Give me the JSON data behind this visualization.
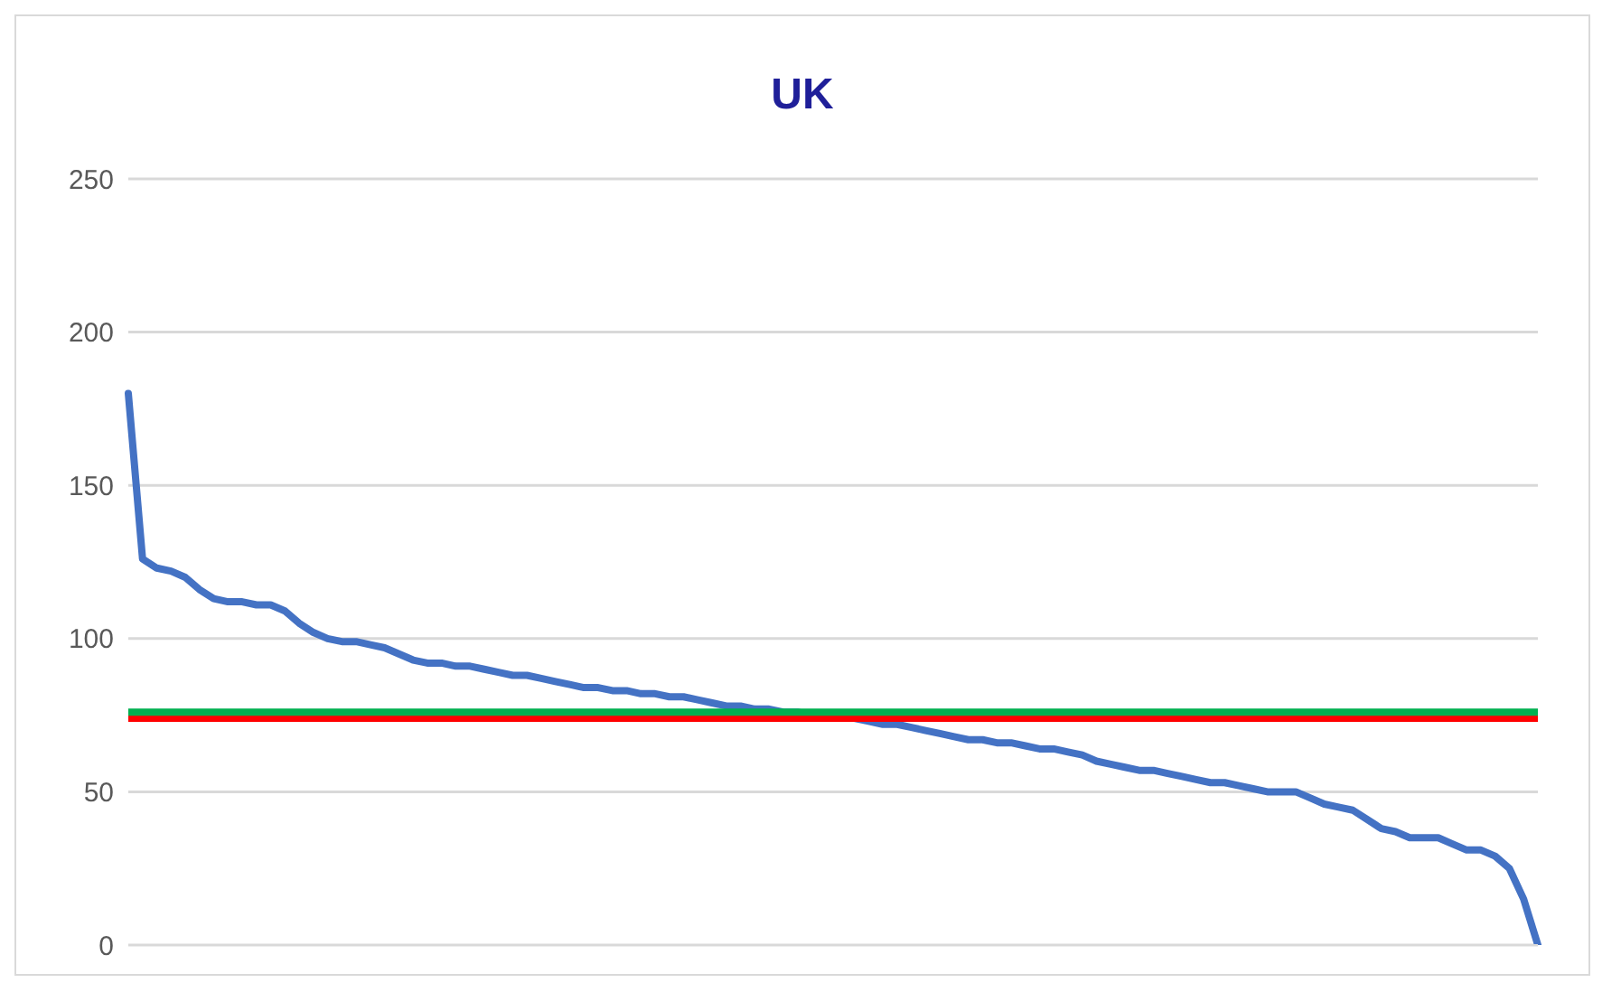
{
  "chart_data": {
    "type": "line",
    "title": "UK",
    "categories": [
      null,
      null,
      null,
      null,
      null,
      null,
      null,
      null,
      null,
      null,
      null,
      null,
      null,
      null,
      null,
      null,
      null,
      null,
      null,
      null,
      null,
      null,
      null,
      null,
      null,
      null,
      null,
      null,
      null,
      null,
      null,
      null,
      null,
      null,
      null,
      null,
      null,
      null,
      null,
      null,
      null,
      null,
      null,
      null,
      null,
      null,
      null,
      null,
      null,
      null,
      null,
      null,
      null,
      null,
      null,
      null,
      null,
      null,
      null,
      null,
      null,
      null,
      null,
      null,
      null,
      null,
      null,
      null,
      null,
      null,
      null,
      null,
      null,
      null,
      null,
      null,
      null,
      null,
      null,
      null,
      null,
      null,
      null,
      null,
      null,
      null,
      null,
      null,
      null,
      null,
      null,
      null,
      null,
      null,
      null,
      null,
      null,
      null,
      null,
      null
    ],
    "series": [
      {
        "color": "#4472c4",
        "values": [
          180,
          126,
          123,
          122,
          120,
          116,
          113,
          112,
          112,
          111,
          111,
          109,
          105,
          102,
          100,
          99,
          99,
          98,
          97,
          95,
          93,
          92,
          92,
          91,
          91,
          90,
          89,
          88,
          88,
          87,
          86,
          85,
          84,
          84,
          83,
          83,
          82,
          82,
          81,
          81,
          80,
          79,
          78,
          78,
          77,
          77,
          76,
          76,
          75,
          75,
          74,
          74,
          73,
          72,
          72,
          71,
          70,
          69,
          68,
          67,
          67,
          66,
          66,
          65,
          64,
          64,
          63,
          62,
          60,
          59,
          58,
          57,
          57,
          56,
          55,
          54,
          53,
          53,
          52,
          51,
          50,
          50,
          50,
          48,
          46,
          45,
          44,
          41,
          38,
          37,
          35,
          35,
          35,
          33,
          31,
          31,
          29,
          25,
          15,
          0
        ]
      }
    ],
    "ylim": [
      0,
      250
    ],
    "yticks": [
      0,
      50,
      100,
      150,
      200,
      250
    ],
    "grid": "y",
    "marker": "none",
    "line_style": "solid",
    "tick_labels": "y",
    "ref_lines": [
      {
        "axis": "y",
        "value": 74,
        "color": "#ff0000"
      },
      {
        "axis": "y",
        "value": 76,
        "color": "#00b050"
      }
    ]
  }
}
